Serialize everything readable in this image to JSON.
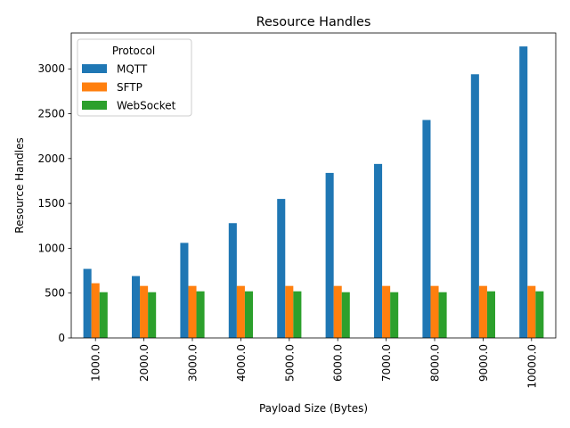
{
  "chart_data": {
    "type": "bar",
    "title": "Resource Handles",
    "xlabel": "Payload Size (Bytes)",
    "ylabel": "Resource Handles",
    "categories": [
      "1000.0",
      "2000.0",
      "3000.0",
      "4000.0",
      "5000.0",
      "6000.0",
      "7000.0",
      "8000.0",
      "9000.0",
      "10000.0"
    ],
    "yticks": [
      "0",
      "500",
      "1000",
      "1500",
      "2000",
      "2500",
      "3000"
    ],
    "ytick_values": [
      0,
      500,
      1000,
      1500,
      2000,
      2500,
      3000
    ],
    "ylim": [
      0,
      3400
    ],
    "grid": false,
    "legend": {
      "title": "Protocol",
      "placement": "top-left"
    },
    "series": [
      {
        "name": "MQTT",
        "color": "#1f77b4",
        "values": [
          770,
          690,
          1060,
          1280,
          1550,
          1840,
          1940,
          2430,
          2940,
          3250
        ]
      },
      {
        "name": "SFTP",
        "color": "#ff7f0e",
        "values": [
          610,
          580,
          580,
          580,
          580,
          580,
          580,
          580,
          580,
          580
        ]
      },
      {
        "name": "WebSocket",
        "color": "#2ca02c",
        "values": [
          510,
          510,
          520,
          520,
          520,
          510,
          510,
          510,
          520,
          520
        ]
      }
    ]
  }
}
